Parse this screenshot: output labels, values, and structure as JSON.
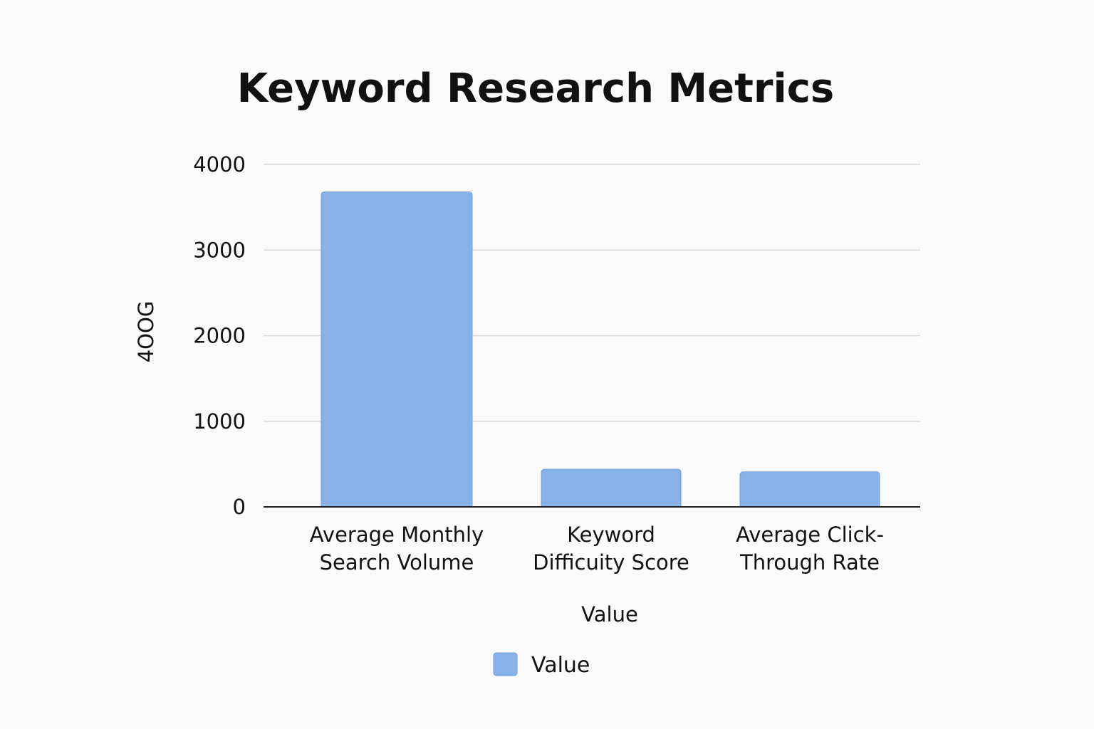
{
  "chart_data": {
    "type": "bar",
    "title": "Keyword Research Metrics",
    "xlabel": "Value",
    "ylabel": "4OOG",
    "categories": [
      [
        "Average Monthly",
        "Search Volume"
      ],
      [
        "Keyword",
        "Difficuity Score"
      ],
      [
        "Average Click-",
        "Through Rate"
      ]
    ],
    "series": [
      {
        "name": "Value",
        "values": [
          3680,
          440,
          410
        ]
      }
    ],
    "ylim": [
      0,
      4000
    ],
    "yticks": [
      0,
      1000,
      2000,
      3000,
      4000
    ],
    "grid": true,
    "legend": "bottom-center",
    "colors": {
      "bar": "#86b2e8",
      "bar_edge": "#6f9fdc",
      "grid": "#d9d9d9",
      "axis": "#222222",
      "background": "#fafafa"
    }
  }
}
